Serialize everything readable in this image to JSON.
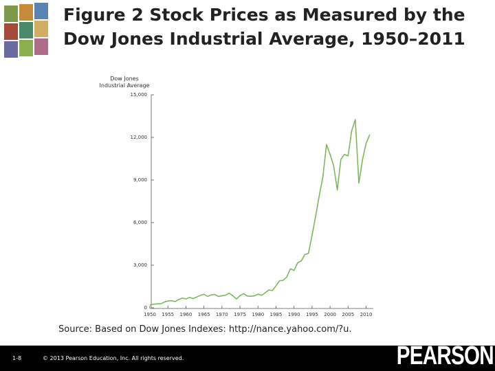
{
  "chart_data": {
    "type": "line",
    "title": "Figure 2  Stock Prices as Measured by the Dow Jones Industrial Average, 1950–2011",
    "ylabel": "Dow Jones Industrial Average",
    "source": "Source: Based on Dow Jones Indexes: http://nance.yahoo.com/?u.",
    "color": "#7cb95a",
    "x": [
      1950,
      1951,
      1952,
      1953,
      1954,
      1955,
      1956,
      1957,
      1958,
      1959,
      1960,
      1961,
      1962,
      1963,
      1964,
      1965,
      1966,
      1967,
      1968,
      1969,
      1970,
      1971,
      1972,
      1973,
      1974,
      1975,
      1976,
      1977,
      1978,
      1979,
      1980,
      1981,
      1982,
      1983,
      1984,
      1985,
      1986,
      1987,
      1988,
      1989,
      1990,
      1991,
      1992,
      1993,
      1994,
      1995,
      1996,
      1997,
      1998,
      1999,
      2000,
      2001,
      2002,
      2003,
      2004,
      2005,
      2006,
      2007,
      2008,
      2009,
      2010,
      2011
    ],
    "values": [
      200,
      250,
      280,
      280,
      400,
      480,
      500,
      440,
      580,
      680,
      620,
      730,
      650,
      760,
      870,
      960,
      800,
      900,
      940,
      800,
      840,
      890,
      1020,
      850,
      620,
      850,
      1000,
      830,
      810,
      840,
      960,
      880,
      1050,
      1260,
      1210,
      1550,
      1900,
      1940,
      2170,
      2750,
      2630,
      3170,
      3300,
      3750,
      3830,
      5100,
      6450,
      7900,
      9200,
      11500,
      10800,
      10000,
      8300,
      10450,
      10800,
      10700,
      12460,
      13260,
      8780,
      10430,
      11580,
      12200
    ],
    "xlim": [
      1950,
      2012
    ],
    "xticks": [
      1950,
      1955,
      1960,
      1965,
      1970,
      1975,
      1980,
      1985,
      1990,
      1995,
      2000,
      2005,
      2010
    ],
    "ylim": [
      0,
      15000
    ],
    "yticks": [
      0,
      {
        "value": 3000,
        "label": "3,000"
      },
      {
        "value": 6000,
        "label": "6,000"
      },
      {
        "value": 9000,
        "label": "9,000"
      },
      {
        "value": 12000,
        "label": "12,000"
      },
      {
        "value": 15000,
        "label": "15,000"
      }
    ]
  },
  "slide": {
    "page_number": "1-8",
    "copyright": "© 2013 Pearson Education, Inc. All rights reserved.",
    "logo": "PEARSON"
  }
}
